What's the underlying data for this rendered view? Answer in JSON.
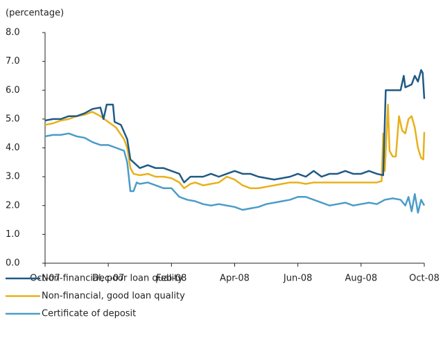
{
  "chart_data": {
    "type": "line",
    "ylabel": "(percentage)",
    "xlim": [
      0,
      12
    ],
    "xticks": [
      {
        "value": 0,
        "label": "Oct-07"
      },
      {
        "value": 2,
        "label": "Dec-07"
      },
      {
        "value": 4,
        "label": "Feb-08"
      },
      {
        "value": 6,
        "label": "Apr-08"
      },
      {
        "value": 8,
        "label": "Jun-08"
      },
      {
        "value": 10,
        "label": "Aug-08"
      },
      {
        "value": 12,
        "label": "Oct-08"
      }
    ],
    "ylim": [
      0,
      8
    ],
    "yticks": [
      {
        "value": 0,
        "label": "0.0"
      },
      {
        "value": 1,
        "label": "1.0"
      },
      {
        "value": 2,
        "label": "2.0"
      },
      {
        "value": 3,
        "label": "3.0"
      },
      {
        "value": 4,
        "label": "4.0"
      },
      {
        "value": 5,
        "label": "5.0"
      },
      {
        "value": 6,
        "label": "6.0"
      },
      {
        "value": 7,
        "label": "7.0"
      },
      {
        "value": 8,
        "label": "8.0"
      }
    ],
    "grid": false,
    "legend": "bottom-left",
    "series": [
      {
        "name": "Non-financial, poor loan quality",
        "color": "#1f5a85",
        "x": [
          0,
          0.25,
          0.5,
          0.75,
          1,
          1.25,
          1.5,
          1.75,
          1.85,
          1.95,
          2.15,
          2.2,
          2.4,
          2.6,
          2.7,
          2.8,
          3,
          3.25,
          3.5,
          3.75,
          4,
          4.25,
          4.4,
          4.6,
          4.75,
          5,
          5.25,
          5.5,
          5.75,
          6,
          6.25,
          6.5,
          6.75,
          7,
          7.25,
          7.5,
          7.75,
          8,
          8.25,
          8.5,
          8.75,
          9,
          9.25,
          9.5,
          9.75,
          10,
          10.25,
          10.5,
          10.7,
          10.78,
          11,
          11.25,
          11.35,
          11.4,
          11.6,
          11.7,
          11.8,
          11.9,
          11.95,
          12
        ],
        "values": [
          4.95,
          5.0,
          5.0,
          5.1,
          5.1,
          5.2,
          5.35,
          5.4,
          5.0,
          5.5,
          5.5,
          4.9,
          4.8,
          4.3,
          3.6,
          3.5,
          3.3,
          3.4,
          3.3,
          3.3,
          3.2,
          3.1,
          2.8,
          3.0,
          3.0,
          3.0,
          3.1,
          3.0,
          3.1,
          3.2,
          3.1,
          3.1,
          3.0,
          2.95,
          2.9,
          2.95,
          3.0,
          3.1,
          3.0,
          3.2,
          3.0,
          3.1,
          3.1,
          3.2,
          3.1,
          3.1,
          3.2,
          3.1,
          3.05,
          6.0,
          6.0,
          6.0,
          6.5,
          6.1,
          6.2,
          6.5,
          6.3,
          6.7,
          6.6,
          5.7
        ]
      },
      {
        "name": "Non-financial, good loan quality",
        "color": "#e8b01a",
        "x": [
          0,
          0.25,
          0.5,
          0.75,
          1,
          1.25,
          1.5,
          1.75,
          2,
          2.25,
          2.5,
          2.6,
          2.7,
          2.8,
          3,
          3.25,
          3.5,
          3.75,
          4,
          4.25,
          4.4,
          4.6,
          4.75,
          5,
          5.25,
          5.5,
          5.75,
          6,
          6.25,
          6.5,
          6.75,
          7,
          7.25,
          7.5,
          7.75,
          8,
          8.25,
          8.5,
          8.75,
          9,
          9.25,
          9.5,
          9.75,
          10,
          10.25,
          10.5,
          10.65,
          10.7,
          10.75,
          10.85,
          10.9,
          11,
          11.1,
          11.2,
          11.3,
          11.4,
          11.5,
          11.6,
          11.7,
          11.8,
          11.9,
          11.97,
          12
        ],
        "values": [
          4.8,
          4.85,
          4.95,
          5.0,
          5.1,
          5.15,
          5.25,
          5.1,
          4.9,
          4.7,
          4.3,
          4.0,
          3.3,
          3.1,
          3.05,
          3.1,
          3.0,
          3.0,
          2.95,
          2.8,
          2.6,
          2.75,
          2.8,
          2.7,
          2.75,
          2.8,
          3.0,
          2.9,
          2.7,
          2.6,
          2.6,
          2.65,
          2.7,
          2.75,
          2.8,
          2.8,
          2.75,
          2.8,
          2.8,
          2.8,
          2.8,
          2.8,
          2.8,
          2.8,
          2.8,
          2.8,
          2.85,
          4.5,
          3.2,
          5.5,
          3.9,
          3.7,
          3.7,
          5.1,
          4.6,
          4.5,
          5.0,
          5.1,
          4.7,
          4.0,
          3.65,
          3.6,
          4.55
        ]
      },
      {
        "name": "Certificate of deposit",
        "color": "#4a9cc9",
        "x": [
          0,
          0.25,
          0.5,
          0.75,
          1,
          1.25,
          1.5,
          1.75,
          2,
          2.25,
          2.5,
          2.6,
          2.7,
          2.8,
          2.9,
          3,
          3.25,
          3.5,
          3.75,
          4,
          4.25,
          4.5,
          4.75,
          5,
          5.25,
          5.5,
          5.75,
          6,
          6.25,
          6.5,
          6.75,
          7,
          7.25,
          7.5,
          7.75,
          8,
          8.25,
          8.5,
          8.75,
          9,
          9.25,
          9.5,
          9.75,
          10,
          10.25,
          10.5,
          10.75,
          11,
          11.25,
          11.4,
          11.5,
          11.6,
          11.7,
          11.8,
          11.9,
          12
        ],
        "values": [
          4.4,
          4.45,
          4.45,
          4.5,
          4.4,
          4.35,
          4.2,
          4.1,
          4.1,
          4.0,
          3.9,
          3.5,
          2.5,
          2.5,
          2.8,
          2.75,
          2.8,
          2.7,
          2.6,
          2.6,
          2.3,
          2.2,
          2.15,
          2.05,
          2.0,
          2.05,
          2.0,
          1.95,
          1.85,
          1.9,
          1.95,
          2.05,
          2.1,
          2.15,
          2.2,
          2.3,
          2.3,
          2.2,
          2.1,
          2.0,
          2.05,
          2.1,
          2.0,
          2.05,
          2.1,
          2.05,
          2.2,
          2.25,
          2.2,
          2.0,
          2.3,
          1.8,
          2.4,
          1.75,
          2.2,
          2.0
        ]
      }
    ]
  }
}
